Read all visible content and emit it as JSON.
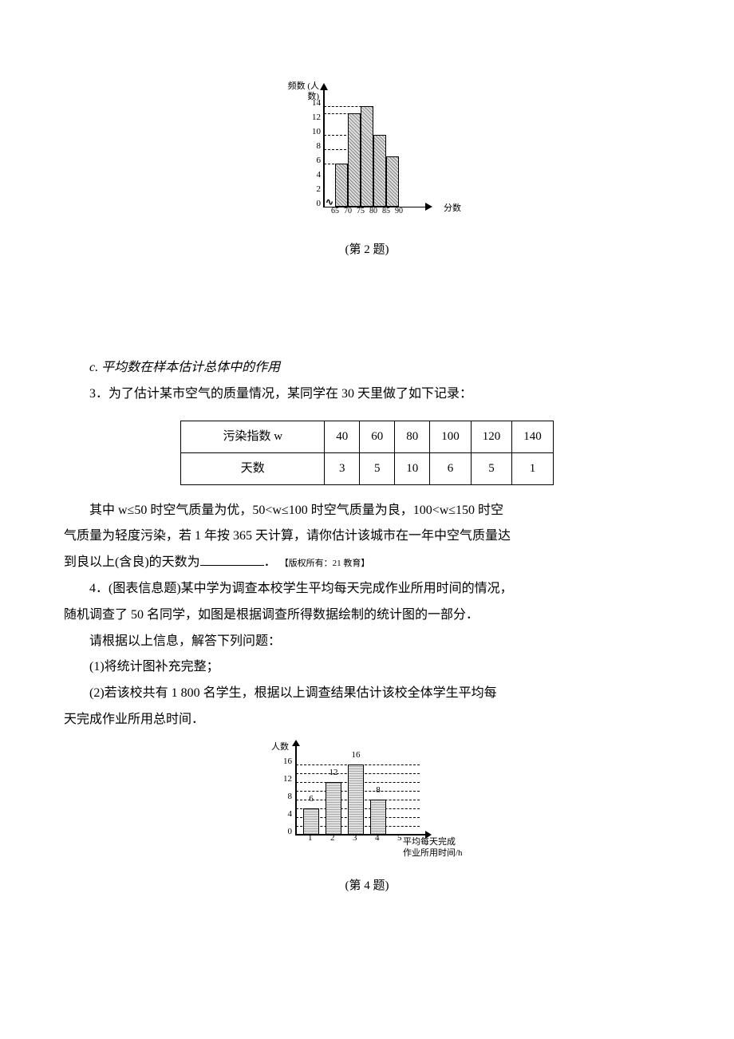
{
  "chart1": {
    "y_axis_label": "频数\n(人数)",
    "x_axis_label": "分数",
    "caption": "(第 2 题)",
    "y_ticks": [
      0,
      2,
      4,
      6,
      8,
      10,
      12,
      14
    ],
    "x_ticks": [
      65,
      70,
      75,
      80,
      85,
      90
    ],
    "bars": [
      {
        "x": 65,
        "value": 6
      },
      {
        "x": 70,
        "value": 13
      },
      {
        "x": 75,
        "value": 14
      },
      {
        "x": 80,
        "value": 10
      },
      {
        "x": 85,
        "value": 7
      }
    ],
    "x_start": 60,
    "y_base": 160,
    "y_scale": 9,
    "x_step": 16,
    "dash_values": [
      6,
      8,
      10,
      13,
      14
    ]
  },
  "section_c": "c. 平均数在样本估计总体中的作用",
  "q3": {
    "intro": "3．为了估计某市空气的质量情况，某同学在 30 天里做了如下记录：",
    "table_header": "污染指数 w",
    "table_row2_header": "天数",
    "cols": [
      "40",
      "60",
      "80",
      "100",
      "120",
      "140"
    ],
    "days": [
      "3",
      "5",
      "10",
      "6",
      "5",
      "1"
    ],
    "para1_a": "其中 w≤50 时空气质量为优，50<w≤100 时空气质量为良，100<w≤150 时空",
    "para1_b": "气质量为轻度污染，若 1 年按 365 天计算，请你估计该城市在一年中空气质量达",
    "para1_c": "到良以上(含良)的天数为",
    "para1_d": "．",
    "copyright": "【版权所有：21 教育】"
  },
  "q4": {
    "line1": "4．(图表信息题)某中学为调查本校学生平均每天完成作业所用时间的情况，",
    "line2": "随机调查了 50 名同学，如图是根据调查所得数据绘制的统计图的一部分．",
    "line3": "请根据以上信息，解答下列问题：",
    "part1": "(1)将统计图补充完整；",
    "part2a": "(2)若该校共有 1 800 名学生，根据以上调查结果估计该校全体学生平均每",
    "part2b": "天完成作业所用总时间．",
    "caption": "(第 4 题)"
  },
  "chart2": {
    "y_axis_label": "人数",
    "x_axis_label_l1": "平均每天完成",
    "x_axis_label_l2": "作业所用时间/h",
    "y_ticks": [
      0,
      4,
      8,
      12,
      16
    ],
    "x_ticks": [
      1,
      2,
      3,
      4,
      5
    ],
    "bars": [
      {
        "x": 1,
        "value": 6,
        "label": "6"
      },
      {
        "x": 2,
        "value": 12,
        "label": "12"
      },
      {
        "x": 3,
        "value": 16,
        "label": "16"
      },
      {
        "x": 4,
        "value": 8,
        "label": "8"
      }
    ],
    "x_start": 50,
    "y_base": 120,
    "y_scale": 5.5,
    "x_step": 28,
    "dash_values": [
      2,
      4,
      6,
      8,
      10,
      12,
      14,
      16
    ]
  }
}
